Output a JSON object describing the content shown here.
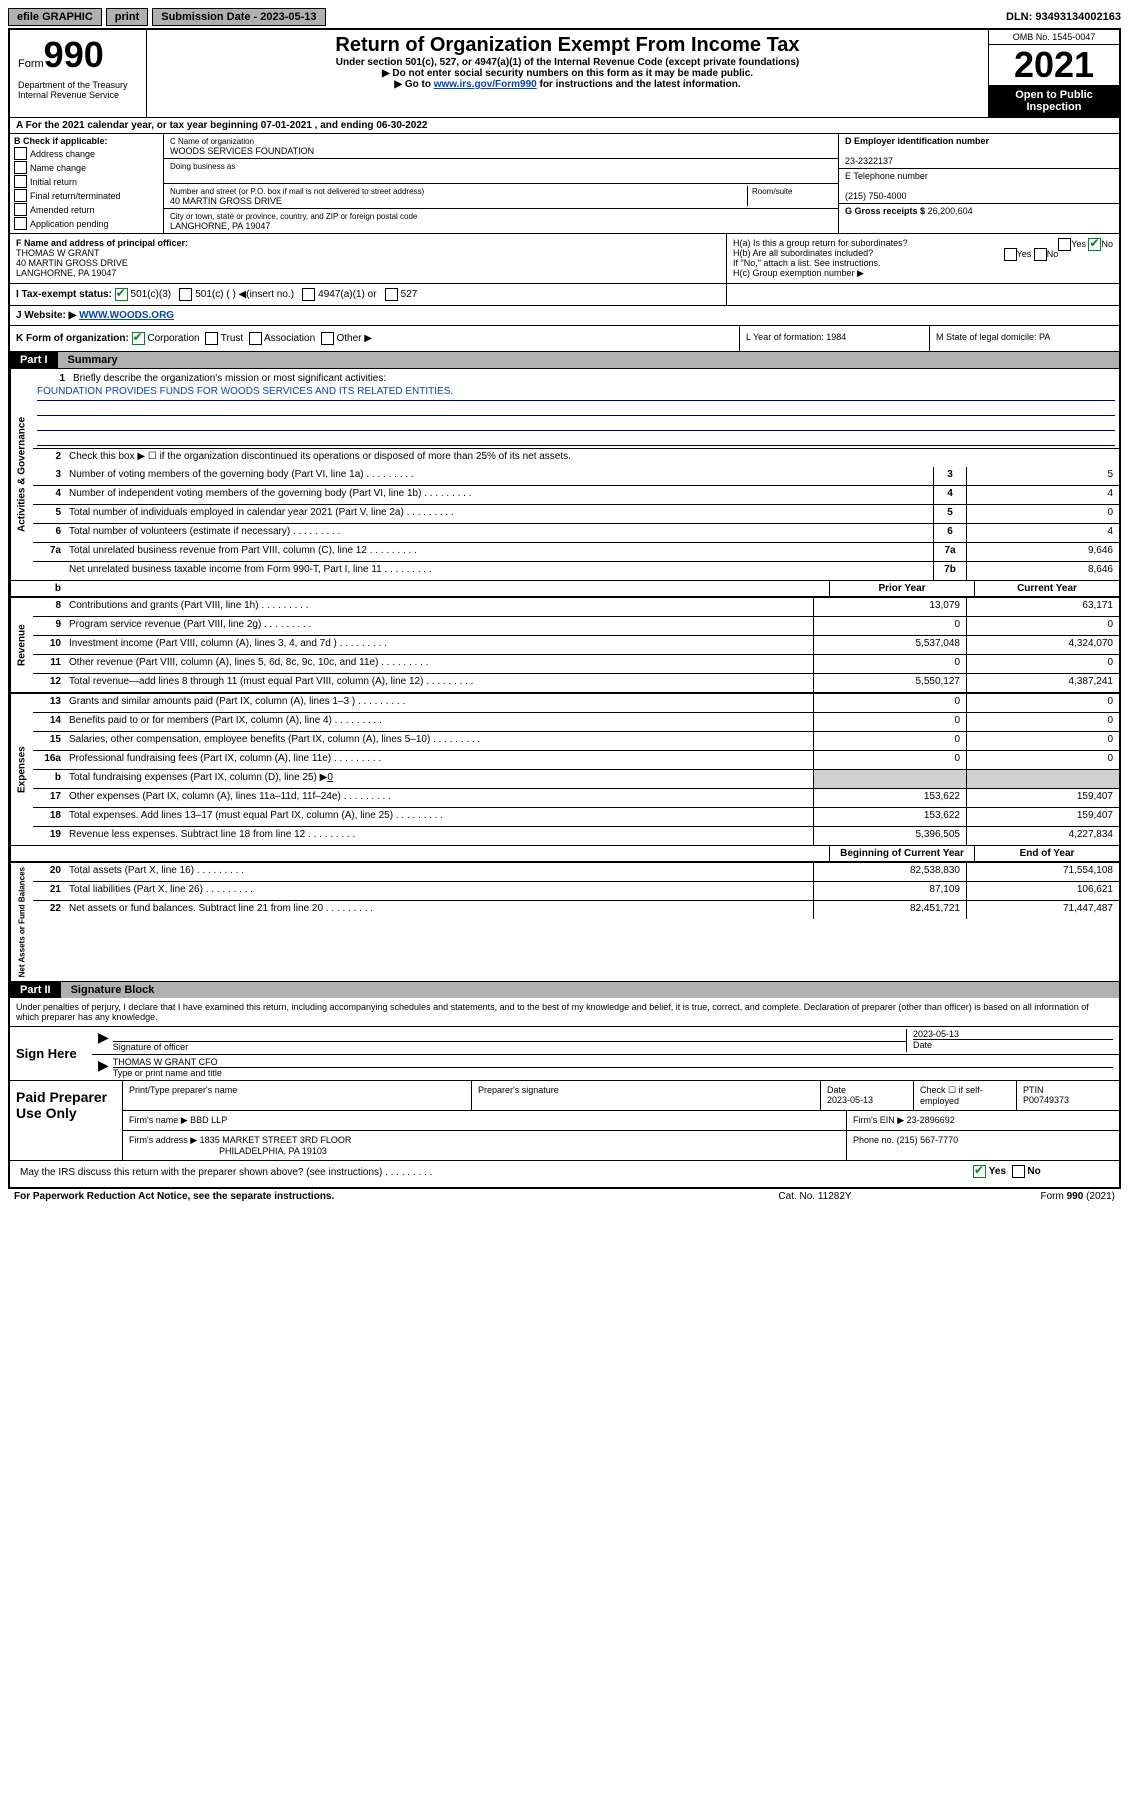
{
  "topbar": {
    "efile": "efile GRAPHIC",
    "print": "print",
    "sub_label": "Submission Date - 2023-05-13",
    "dln": "DLN: 93493134002163"
  },
  "header": {
    "form_label": "Form",
    "form_num": "990",
    "title": "Return of Organization Exempt From Income Tax",
    "subtitle": "Under section 501(c), 527, or 4947(a)(1) of the Internal Revenue Code (except private foundations)",
    "instr1": "▶ Do not enter social security numbers on this form as it may be made public.",
    "instr2_pre": "▶ Go to ",
    "instr2_link": "www.irs.gov/Form990",
    "instr2_post": " for instructions and the latest information.",
    "omb": "OMB No. 1545-0047",
    "year": "2021",
    "open": "Open to Public Inspection",
    "dept": "Department of the Treasury Internal Revenue Service"
  },
  "row_a": "A For the 2021 calendar year, or tax year beginning 07-01-2021   , and ending 06-30-2022",
  "b": {
    "label": "B Check if applicable:",
    "items": [
      "Address change",
      "Name change",
      "Initial return",
      "Final return/terminated",
      "Amended return",
      "Application pending"
    ]
  },
  "c": {
    "name_lbl": "C Name of organization",
    "name": "WOODS SERVICES FOUNDATION",
    "dba_lbl": "Doing business as",
    "dba": "",
    "addr_lbl": "Number and street (or P.O. box if mail is not delivered to street address)",
    "room_lbl": "Room/suite",
    "addr": "40 MARTIN GROSS DRIVE",
    "city_lbl": "City or town, state or province, country, and ZIP or foreign postal code",
    "city": "LANGHORNE, PA  19047"
  },
  "d": {
    "ein_lbl": "D Employer identification number",
    "ein": "23-2322137",
    "tel_lbl": "E Telephone number",
    "tel": "(215) 750-4000",
    "gross_lbl": "G Gross receipts $",
    "gross": "26,200,604"
  },
  "f": {
    "lbl": "F Name and address of principal officer:",
    "name": "THOMAS W GRANT",
    "addr1": "40 MARTIN GROSS DRIVE",
    "addr2": "LANGHORNE, PA  19047"
  },
  "h": {
    "a": "H(a)  Is this a group return for subordinates?",
    "a_yes": "Yes",
    "a_no": "No",
    "b": "H(b)  Are all subordinates included?",
    "b_yes": "Yes",
    "b_no": "No",
    "b_note": "If \"No,\" attach a list. See instructions.",
    "c": "H(c)  Group exemption number ▶"
  },
  "i": {
    "lbl": "I   Tax-exempt status:",
    "opts": [
      "501(c)(3)",
      "501(c) (  ) ◀(insert no.)",
      "4947(a)(1) or",
      "527"
    ]
  },
  "j": {
    "lbl": "J   Website: ▶",
    "val": "WWW.WOODS.ORG"
  },
  "k": {
    "lbl": "K Form of organization:",
    "opts": [
      "Corporation",
      "Trust",
      "Association",
      "Other ▶"
    ],
    "l": "L Year of formation: 1984",
    "m": "M State of legal domicile: PA"
  },
  "part1": {
    "tab": "Part I",
    "title": "Summary"
  },
  "gov": {
    "side": "Activities & Governance",
    "l1": "Briefly describe the organization's mission or most significant activities:",
    "l1_text": "FOUNDATION PROVIDES FUNDS FOR WOODS SERVICES AND ITS RELATED ENTITIES.",
    "l2": "Check this box ▶ ☐  if the organization discontinued its operations or disposed of more than 25% of its net assets.",
    "rows": [
      {
        "n": "3",
        "t": "Number of voting members of the governing body (Part VI, line 1a)",
        "b": "3",
        "v": "5"
      },
      {
        "n": "4",
        "t": "Number of independent voting members of the governing body (Part VI, line 1b)",
        "b": "4",
        "v": "4"
      },
      {
        "n": "5",
        "t": "Total number of individuals employed in calendar year 2021 (Part V, line 2a)",
        "b": "5",
        "v": "0"
      },
      {
        "n": "6",
        "t": "Total number of volunteers (estimate if necessary)",
        "b": "6",
        "v": "4"
      },
      {
        "n": "7a",
        "t": "Total unrelated business revenue from Part VIII, column (C), line 12",
        "b": "7a",
        "v": "9,646"
      },
      {
        "n": "",
        "t": "Net unrelated business taxable income from Form 990-T, Part I, line 11",
        "b": "7b",
        "v": "8,646"
      }
    ]
  },
  "colheads": {
    "b": "b",
    "prior": "Prior Year",
    "current": "Current Year",
    "begin": "Beginning of Current Year",
    "end": "End of Year"
  },
  "rev": {
    "side": "Revenue",
    "rows": [
      {
        "n": "8",
        "t": "Contributions and grants (Part VIII, line 1h)",
        "p": "13,079",
        "c": "63,171"
      },
      {
        "n": "9",
        "t": "Program service revenue (Part VIII, line 2g)",
        "p": "0",
        "c": "0"
      },
      {
        "n": "10",
        "t": "Investment income (Part VIII, column (A), lines 3, 4, and 7d )",
        "p": "5,537,048",
        "c": "4,324,070"
      },
      {
        "n": "11",
        "t": "Other revenue (Part VIII, column (A), lines 5, 6d, 8c, 9c, 10c, and 11e)",
        "p": "0",
        "c": "0"
      },
      {
        "n": "12",
        "t": "Total revenue—add lines 8 through 11 (must equal Part VIII, column (A), line 12)",
        "p": "5,550,127",
        "c": "4,387,241"
      }
    ]
  },
  "exp": {
    "side": "Expenses",
    "rows": [
      {
        "n": "13",
        "t": "Grants and similar amounts paid (Part IX, column (A), lines 1–3 )",
        "p": "0",
        "c": "0"
      },
      {
        "n": "14",
        "t": "Benefits paid to or for members (Part IX, column (A), line 4)",
        "p": "0",
        "c": "0"
      },
      {
        "n": "15",
        "t": "Salaries, other compensation, employee benefits (Part IX, column (A), lines 5–10)",
        "p": "0",
        "c": "0"
      },
      {
        "n": "16a",
        "t": "Professional fundraising fees (Part IX, column (A), line 11e)",
        "p": "0",
        "c": "0"
      }
    ],
    "row_b": {
      "n": "b",
      "t": "Total fundraising expenses (Part IX, column (D), line 25) ▶",
      "v": "0"
    },
    "rows2": [
      {
        "n": "17",
        "t": "Other expenses (Part IX, column (A), lines 11a–11d, 11f–24e)",
        "p": "153,622",
        "c": "159,407"
      },
      {
        "n": "18",
        "t": "Total expenses. Add lines 13–17 (must equal Part IX, column (A), line 25)",
        "p": "153,622",
        "c": "159,407"
      },
      {
        "n": "19",
        "t": "Revenue less expenses. Subtract line 18 from line 12",
        "p": "5,396,505",
        "c": "4,227,834"
      }
    ]
  },
  "net": {
    "side": "Net Assets or Fund Balances",
    "rows": [
      {
        "n": "20",
        "t": "Total assets (Part X, line 16)",
        "p": "82,538,830",
        "c": "71,554,108"
      },
      {
        "n": "21",
        "t": "Total liabilities (Part X, line 26)",
        "p": "87,109",
        "c": "106,621"
      },
      {
        "n": "22",
        "t": "Net assets or fund balances. Subtract line 21 from line 20",
        "p": "82,451,721",
        "c": "71,447,487"
      }
    ]
  },
  "part2": {
    "tab": "Part II",
    "title": "Signature Block"
  },
  "sig": {
    "intro": "Under penalties of perjury, I declare that I have examined this return, including accompanying schedules and statements, and to the best of my knowledge and belief, it is true, correct, and complete. Declaration of preparer (other than officer) is based on all information of which preparer has any knowledge.",
    "here": "Sign Here",
    "sig_lbl": "Signature of officer",
    "date_lbl": "Date",
    "date": "2023-05-13",
    "name": "THOMAS W GRANT CFO",
    "name_lbl": "Type or print name and title"
  },
  "paid": {
    "lbl": "Paid Preparer Use Only",
    "h1": "Print/Type preparer's name",
    "h2": "Preparer's signature",
    "h3": "Date",
    "h4": "Check ☐ if self-employed",
    "h5": "PTIN",
    "date": "2023-05-13",
    "ptin": "P00749373",
    "firm_lbl": "Firm's name   ▶",
    "firm": "BBD LLP",
    "ein_lbl": "Firm's EIN ▶",
    "ein": "23-2896692",
    "addr_lbl": "Firm's address ▶",
    "addr": "1835 MARKET STREET 3RD FLOOR",
    "addr2": "PHILADELPHIA, PA  19103",
    "phone_lbl": "Phone no.",
    "phone": "(215) 567-7770"
  },
  "may": {
    "t": "May the IRS discuss this return with the preparer shown above? (see instructions)",
    "yes": "Yes",
    "no": "No"
  },
  "footer": {
    "left": "For Paperwork Reduction Act Notice, see the separate instructions.",
    "mid": "Cat. No. 11282Y",
    "right": "Form 990 (2021)"
  }
}
